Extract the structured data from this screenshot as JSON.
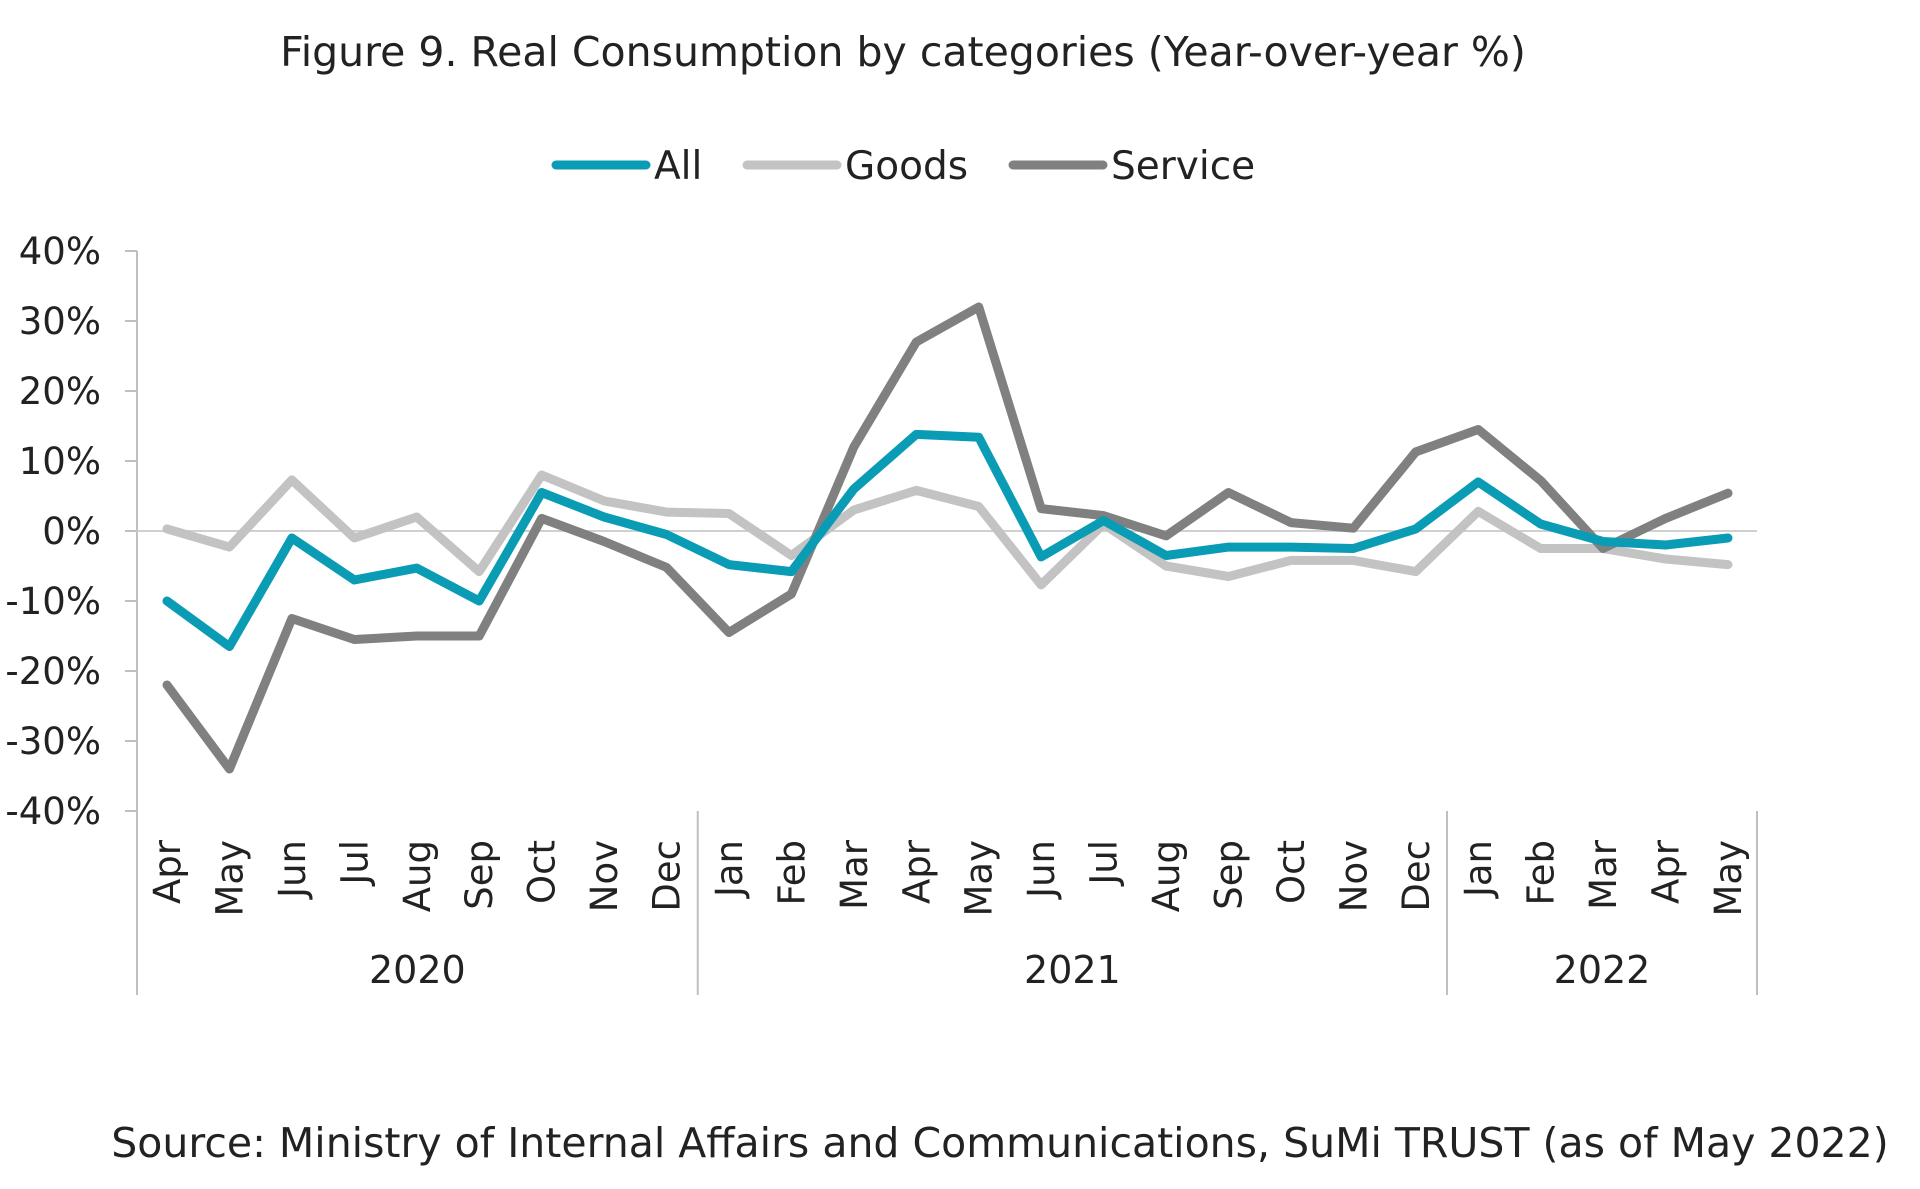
{
  "chart_data": {
    "type": "line",
    "title": "Figure 9. Real Consumption by categories (Year-over-year %)",
    "source": "Source: Ministry of Internal Affairs and Communications, SuMi TRUST (as of May 2022)",
    "legend_position": "top",
    "grid": false,
    "ylim": [
      -40,
      40
    ],
    "yticks": [
      "40%",
      "30%",
      "20%",
      "10%",
      "0%",
      "-10%",
      "-20%",
      "-30%",
      "-40%"
    ],
    "ytick_values": [
      40,
      30,
      20,
      10,
      0,
      -10,
      -20,
      -30,
      -40
    ],
    "categories": [
      "Apr",
      "May",
      "Jun",
      "Jul",
      "Aug",
      "Sep",
      "Oct",
      "Nov",
      "Dec",
      "Jan",
      "Feb",
      "Mar",
      "Apr",
      "May",
      "Jun",
      "Jul",
      "Aug",
      "Sep",
      "Oct",
      "Nov",
      "Dec",
      "Jan",
      "Feb",
      "Mar",
      "Apr",
      "May"
    ],
    "year_groups": [
      {
        "label": "2020",
        "count": 9
      },
      {
        "label": "2021",
        "count": 12
      },
      {
        "label": "2022",
        "count": 5
      }
    ],
    "series": [
      {
        "name": "All",
        "color": "#0a9cb4",
        "values": [
          -10,
          -16.5,
          -1,
          -7,
          -5.3,
          -10,
          5.5,
          2,
          -0.5,
          -4.8,
          -5.8,
          6,
          13.8,
          13.4,
          -3.7,
          1.5,
          -3.5,
          -2.3,
          -2.3,
          -2.5,
          0.3,
          7,
          1,
          -1.5,
          -2,
          -1
        ]
      },
      {
        "name": "Goods",
        "color": "#c3c3c3",
        "values": [
          0.3,
          -2.3,
          7.3,
          -1,
          2,
          -5.8,
          8,
          4.3,
          2.7,
          2.5,
          -3.5,
          3,
          5.8,
          3.5,
          -7.7,
          1,
          -5,
          -6.5,
          -4.2,
          -4.2,
          -5.8,
          2.8,
          -2.5,
          -2.5,
          -4,
          -4.8
        ]
      },
      {
        "name": "Service",
        "color": "#808080",
        "values": [
          -22,
          -34,
          -12.5,
          -15.5,
          -15,
          -15,
          1.8,
          -1.5,
          -5.2,
          -14.5,
          -9,
          12,
          27,
          32,
          3.2,
          2.2,
          -0.7,
          5.5,
          1.2,
          0.4,
          11.3,
          14.5,
          7.2,
          -2.5,
          1.8,
          5.4
        ]
      }
    ]
  }
}
